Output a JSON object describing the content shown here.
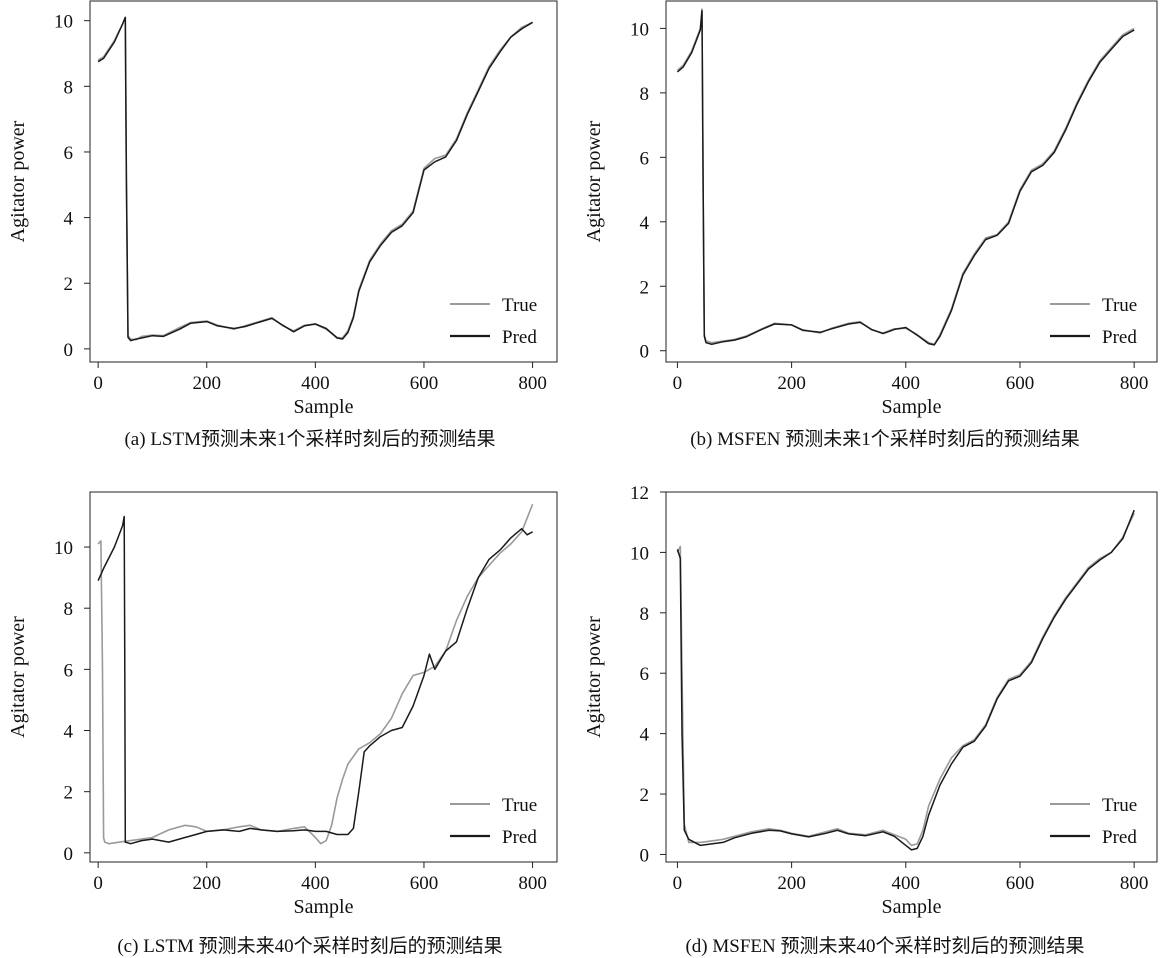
{
  "chart_data": [
    {
      "type": "line",
      "ylabel": "Agitator power",
      "xlabel": "Sample",
      "caption": "(a) LSTM预测未来1个采样时刻后的预测结果",
      "xlim": [
        -15,
        845
      ],
      "ylim": [
        -0.4,
        10.6
      ],
      "xticks": [
        0,
        200,
        400,
        600,
        800
      ],
      "yticks": [
        0,
        2,
        4,
        6,
        8,
        10
      ],
      "legend": {
        "position": "bottom-right",
        "entries": [
          "True",
          "Pred"
        ]
      },
      "series": [
        {
          "name": "True",
          "color": "#9a9a9a",
          "x": [
            0,
            10,
            30,
            45,
            50,
            52,
            55,
            60,
            70,
            80,
            100,
            120,
            150,
            170,
            200,
            220,
            250,
            270,
            300,
            320,
            340,
            360,
            380,
            400,
            420,
            440,
            450,
            460,
            470,
            480,
            500,
            520,
            540,
            560,
            580,
            600,
            620,
            640,
            660,
            680,
            700,
            720,
            740,
            760,
            780,
            800
          ],
          "y": [
            8.8,
            8.9,
            9.4,
            9.9,
            10.1,
            5.0,
            0.4,
            0.3,
            0.28,
            0.38,
            0.42,
            0.4,
            0.65,
            0.8,
            0.85,
            0.72,
            0.6,
            0.7,
            0.85,
            0.95,
            0.7,
            0.55,
            0.72,
            0.75,
            0.6,
            0.35,
            0.33,
            0.55,
            1.0,
            1.8,
            2.7,
            3.2,
            3.6,
            3.8,
            4.2,
            5.5,
            5.8,
            5.9,
            6.4,
            7.2,
            7.9,
            8.6,
            9.1,
            9.5,
            9.8,
            9.95
          ]
        },
        {
          "name": "Pred",
          "color": "#1a1a1a",
          "x": [
            0,
            10,
            30,
            45,
            50,
            52,
            55,
            60,
            70,
            80,
            100,
            120,
            150,
            170,
            200,
            220,
            250,
            270,
            300,
            320,
            340,
            360,
            380,
            400,
            420,
            440,
            450,
            460,
            470,
            480,
            500,
            520,
            540,
            560,
            580,
            600,
            620,
            640,
            660,
            680,
            700,
            720,
            740,
            760,
            780,
            800
          ],
          "y": [
            8.75,
            8.85,
            9.35,
            9.9,
            10.1,
            5.2,
            0.35,
            0.25,
            0.3,
            0.33,
            0.4,
            0.38,
            0.6,
            0.78,
            0.83,
            0.7,
            0.62,
            0.68,
            0.83,
            0.93,
            0.72,
            0.52,
            0.7,
            0.76,
            0.62,
            0.33,
            0.3,
            0.5,
            0.95,
            1.75,
            2.65,
            3.15,
            3.55,
            3.75,
            4.15,
            5.45,
            5.7,
            5.85,
            6.35,
            7.15,
            7.85,
            8.55,
            9.05,
            9.5,
            9.75,
            9.95
          ]
        }
      ]
    },
    {
      "type": "line",
      "ylabel": "Agitator power",
      "xlabel": "Sample",
      "caption": "(b) MSFEN 预测未来1个采样时刻后的预测结果",
      "xlim": [
        -20,
        840
      ],
      "ylim": [
        -0.35,
        10.85
      ],
      "xticks": [
        0,
        200,
        400,
        600,
        800
      ],
      "yticks": [
        0,
        2,
        4,
        6,
        8,
        10
      ],
      "legend": {
        "position": "bottom-right",
        "entries": [
          "True",
          "Pred"
        ]
      },
      "series": [
        {
          "name": "True",
          "color": "#9a9a9a",
          "x": [
            0,
            10,
            25,
            40,
            43,
            45,
            47,
            50,
            60,
            80,
            100,
            120,
            150,
            170,
            200,
            220,
            250,
            270,
            300,
            320,
            340,
            360,
            380,
            400,
            420,
            440,
            450,
            460,
            480,
            500,
            520,
            540,
            560,
            580,
            600,
            620,
            640,
            660,
            680,
            700,
            720,
            740,
            760,
            780,
            800
          ],
          "y": [
            8.7,
            8.85,
            9.3,
            10.0,
            10.6,
            5.0,
            0.5,
            0.3,
            0.25,
            0.3,
            0.35,
            0.45,
            0.7,
            0.85,
            0.8,
            0.65,
            0.55,
            0.7,
            0.85,
            0.9,
            0.65,
            0.55,
            0.68,
            0.7,
            0.5,
            0.25,
            0.2,
            0.5,
            1.3,
            2.4,
            3.0,
            3.5,
            3.6,
            4.0,
            5.0,
            5.6,
            5.8,
            6.2,
            6.9,
            7.7,
            8.4,
            9.0,
            9.4,
            9.8,
            10.0
          ]
        },
        {
          "name": "Pred",
          "color": "#1a1a1a",
          "x": [
            0,
            10,
            25,
            40,
            43,
            45,
            47,
            50,
            60,
            80,
            100,
            120,
            150,
            170,
            200,
            220,
            250,
            270,
            300,
            320,
            340,
            360,
            380,
            400,
            420,
            440,
            450,
            460,
            480,
            500,
            520,
            540,
            560,
            580,
            600,
            620,
            640,
            660,
            680,
            700,
            720,
            740,
            760,
            780,
            800
          ],
          "y": [
            8.65,
            8.8,
            9.25,
            9.95,
            10.55,
            5.3,
            0.45,
            0.25,
            0.2,
            0.28,
            0.33,
            0.43,
            0.68,
            0.83,
            0.8,
            0.63,
            0.57,
            0.68,
            0.83,
            0.88,
            0.66,
            0.53,
            0.66,
            0.72,
            0.48,
            0.22,
            0.18,
            0.45,
            1.25,
            2.35,
            2.95,
            3.45,
            3.58,
            3.95,
            4.95,
            5.55,
            5.75,
            6.15,
            6.85,
            7.65,
            8.35,
            8.95,
            9.35,
            9.75,
            9.95
          ]
        }
      ]
    },
    {
      "type": "line",
      "ylabel": "Agitator power",
      "xlabel": "Sample",
      "caption": "(c) LSTM 预测未来40个采样时刻后的预测结果",
      "xlim": [
        -15,
        845
      ],
      "ylim": [
        -0.3,
        11.8
      ],
      "xticks": [
        0,
        200,
        400,
        600,
        800
      ],
      "yticks": [
        0,
        2,
        4,
        6,
        8,
        10
      ],
      "legend": {
        "position": "bottom-right",
        "entries": [
          "True",
          "Pred"
        ]
      },
      "series": [
        {
          "name": "True",
          "color": "#9a9a9a",
          "x": [
            0,
            5,
            8,
            10,
            12,
            20,
            40,
            60,
            80,
            100,
            130,
            160,
            180,
            200,
            230,
            260,
            280,
            300,
            330,
            360,
            380,
            400,
            410,
            420,
            430,
            440,
            450,
            460,
            480,
            500,
            520,
            540,
            560,
            580,
            600,
            620,
            640,
            660,
            680,
            700,
            720,
            740,
            760,
            780,
            800
          ],
          "y": [
            10.1,
            10.2,
            6.0,
            0.5,
            0.35,
            0.3,
            0.35,
            0.4,
            0.45,
            0.5,
            0.75,
            0.9,
            0.85,
            0.7,
            0.75,
            0.85,
            0.9,
            0.75,
            0.7,
            0.8,
            0.85,
            0.5,
            0.3,
            0.4,
            0.9,
            1.8,
            2.4,
            2.9,
            3.4,
            3.6,
            3.9,
            4.4,
            5.2,
            5.8,
            5.9,
            6.1,
            6.6,
            7.6,
            8.4,
            9.0,
            9.4,
            9.8,
            10.1,
            10.5,
            11.4
          ]
        },
        {
          "name": "Pred",
          "color": "#1a1a1a",
          "x": [
            0,
            10,
            30,
            45,
            48,
            49,
            50,
            60,
            80,
            100,
            130,
            160,
            180,
            200,
            230,
            260,
            280,
            300,
            330,
            360,
            380,
            400,
            420,
            440,
            460,
            470,
            480,
            490,
            500,
            520,
            540,
            560,
            580,
            600,
            610,
            620,
            640,
            660,
            680,
            700,
            720,
            740,
            760,
            780,
            790,
            800
          ],
          "y": [
            8.9,
            9.3,
            10.0,
            10.7,
            11.0,
            6.0,
            0.35,
            0.3,
            0.4,
            0.45,
            0.35,
            0.5,
            0.6,
            0.7,
            0.75,
            0.7,
            0.8,
            0.75,
            0.7,
            0.72,
            0.75,
            0.7,
            0.7,
            0.6,
            0.6,
            0.8,
            2.0,
            3.3,
            3.5,
            3.8,
            4.0,
            4.1,
            4.8,
            5.8,
            6.5,
            6.0,
            6.6,
            6.9,
            8.0,
            9.0,
            9.6,
            9.9,
            10.3,
            10.6,
            10.4,
            10.5
          ]
        }
      ]
    },
    {
      "type": "line",
      "ylabel": "Agitator power",
      "xlabel": "Sample",
      "caption": "(d) MSFEN 预测未来40个采样时刻后的预测结果",
      "xlim": [
        -20,
        840
      ],
      "ylim": [
        -0.25,
        12.0
      ],
      "xticks": [
        0,
        200,
        400,
        600,
        800
      ],
      "yticks": [
        0,
        2,
        4,
        6,
        8,
        10,
        12
      ],
      "legend": {
        "position": "bottom-right",
        "entries": [
          "True",
          "Pred"
        ]
      },
      "series": [
        {
          "name": "True",
          "color": "#9a9a9a",
          "x": [
            0,
            5,
            8,
            12,
            20,
            40,
            60,
            80,
            100,
            130,
            160,
            180,
            200,
            230,
            260,
            280,
            300,
            330,
            360,
            380,
            400,
            410,
            420,
            430,
            440,
            460,
            480,
            500,
            520,
            540,
            560,
            580,
            600,
            620,
            640,
            660,
            680,
            700,
            720,
            740,
            760,
            780,
            800
          ],
          "y": [
            10.0,
            10.2,
            6.0,
            1.0,
            0.4,
            0.4,
            0.45,
            0.5,
            0.6,
            0.75,
            0.85,
            0.8,
            0.7,
            0.6,
            0.75,
            0.85,
            0.7,
            0.65,
            0.8,
            0.65,
            0.5,
            0.3,
            0.35,
            0.8,
            1.6,
            2.5,
            3.2,
            3.6,
            3.8,
            4.3,
            5.2,
            5.8,
            5.95,
            6.4,
            7.2,
            7.9,
            8.5,
            9.0,
            9.5,
            9.8,
            10.0,
            10.5,
            11.3
          ]
        },
        {
          "name": "Pred",
          "color": "#1a1a1a",
          "x": [
            0,
            5,
            8,
            12,
            20,
            40,
            60,
            80,
            100,
            130,
            160,
            180,
            200,
            230,
            260,
            280,
            300,
            330,
            360,
            380,
            400,
            410,
            420,
            430,
            440,
            460,
            480,
            500,
            520,
            540,
            560,
            580,
            600,
            620,
            640,
            660,
            680,
            700,
            720,
            740,
            760,
            780,
            800
          ],
          "y": [
            10.1,
            9.8,
            4.0,
            0.8,
            0.5,
            0.3,
            0.35,
            0.4,
            0.55,
            0.7,
            0.8,
            0.78,
            0.68,
            0.58,
            0.7,
            0.8,
            0.68,
            0.62,
            0.75,
            0.6,
            0.3,
            0.15,
            0.2,
            0.6,
            1.3,
            2.3,
            3.0,
            3.55,
            3.75,
            4.25,
            5.15,
            5.75,
            5.9,
            6.35,
            7.15,
            7.85,
            8.45,
            8.95,
            9.45,
            9.75,
            10.0,
            10.45,
            11.4
          ]
        }
      ]
    }
  ]
}
